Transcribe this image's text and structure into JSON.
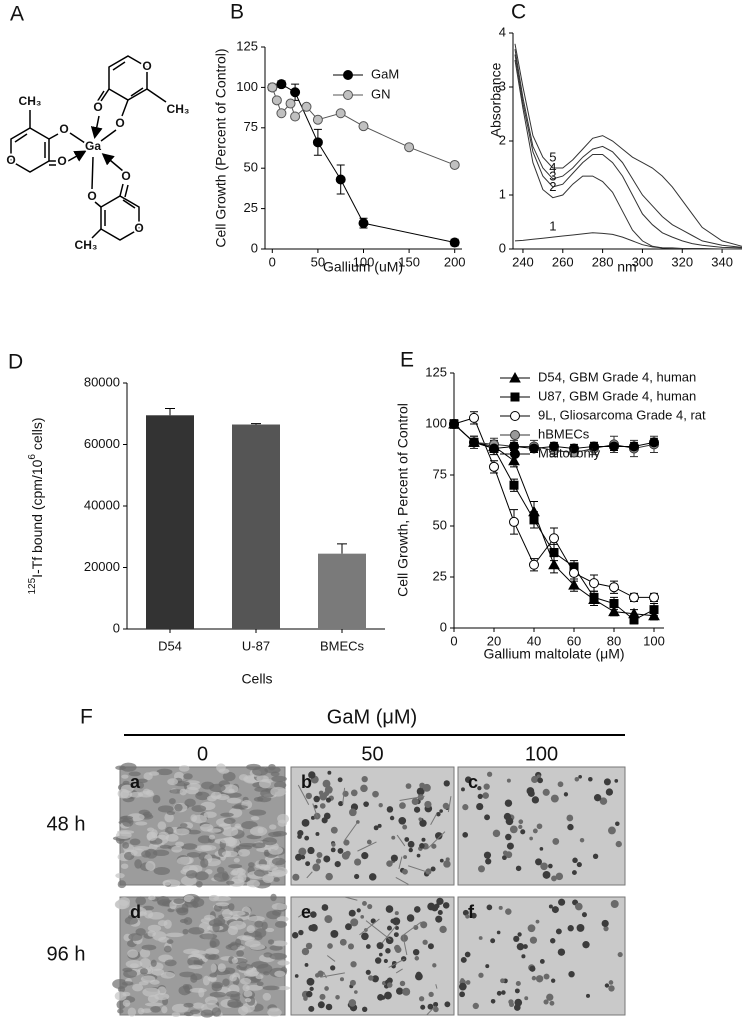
{
  "panel_labels": [
    "A",
    "B",
    "C",
    "D",
    "E",
    "F"
  ],
  "structure": {
    "atoms": [
      "CH₃",
      "O",
      "O",
      "O",
      "Ga",
      "O",
      "O",
      "O",
      "CH₃",
      "O",
      "O",
      "O",
      "CH₃"
    ]
  },
  "chart_data": [
    {
      "type": "line",
      "xlabel": "Gallium (uM)",
      "ylabel": "Cell Growth (Percent of Control)",
      "xlim": [
        -8,
        208
      ],
      "xticks": [
        0,
        50,
        100,
        150,
        200
      ],
      "ylim": [
        0,
        125
      ],
      "yticks": [
        0,
        25,
        50,
        75,
        100,
        125
      ],
      "legend": "upper right",
      "series": [
        {
          "name": "GaM",
          "color": "#000000",
          "marker": "circle",
          "marker_fill": "#000000",
          "x": [
            0,
            10,
            25,
            50,
            75,
            100,
            200
          ],
          "values": [
            100,
            102,
            97,
            66,
            43,
            16,
            4
          ],
          "errors": [
            2,
            2,
            5,
            8,
            9,
            3,
            2
          ]
        },
        {
          "name": "GN",
          "color": "#555555",
          "marker": "circle",
          "marker_fill": "#c0c0c0",
          "x": [
            0,
            5,
            10,
            20,
            25,
            37.5,
            50,
            75,
            100,
            150,
            200
          ],
          "values": [
            100,
            92,
            84,
            90,
            82,
            88,
            80,
            84,
            76,
            63,
            52
          ]
        }
      ]
    },
    {
      "type": "line",
      "xlabel": "nm",
      "ylabel": "Absorbance",
      "xlim": [
        235,
        350
      ],
      "xticks": [
        240,
        260,
        280,
        300,
        320,
        340
      ],
      "ylim": [
        0,
        4
      ],
      "yticks": [
        0,
        1,
        2,
        3,
        4
      ],
      "legend": "inline",
      "x": [
        236,
        240,
        245,
        250,
        255,
        260,
        265,
        270,
        275,
        280,
        285,
        290,
        295,
        300,
        305,
        310,
        315,
        320,
        325,
        330,
        340,
        350
      ],
      "series": [
        {
          "name": "1",
          "color": "#333333",
          "marker": "none",
          "values": [
            0.15,
            0.16,
            0.18,
            0.2,
            0.22,
            0.24,
            0.26,
            0.28,
            0.3,
            0.29,
            0.27,
            0.22,
            0.15,
            0.08,
            0.04,
            0.02,
            0.01,
            0.01,
            0,
            0,
            0,
            0
          ]
        },
        {
          "name": "2",
          "color": "#333333",
          "marker": "none",
          "values": [
            3.5,
            2.6,
            1.6,
            1.1,
            0.95,
            1.0,
            1.2,
            1.35,
            1.35,
            1.25,
            1.05,
            0.7,
            0.35,
            0.15,
            0.05,
            0.02,
            0.02,
            0.01,
            0.01,
            0.01,
            0,
            0
          ]
        },
        {
          "name": "3",
          "color": "#333333",
          "marker": "none",
          "values": [
            3.6,
            2.7,
            1.8,
            1.35,
            1.15,
            1.2,
            1.4,
            1.6,
            1.75,
            1.75,
            1.6,
            1.35,
            1.0,
            0.65,
            0.45,
            0.3,
            0.22,
            0.15,
            0.1,
            0.07,
            0.03,
            0.02
          ]
        },
        {
          "name": "4",
          "color": "#333333",
          "marker": "none",
          "values": [
            3.7,
            2.8,
            1.9,
            1.5,
            1.3,
            1.35,
            1.5,
            1.7,
            1.85,
            1.9,
            1.8,
            1.6,
            1.3,
            1.0,
            0.8,
            0.6,
            0.45,
            0.35,
            0.25,
            0.15,
            0.07,
            0.03
          ]
        },
        {
          "name": "5",
          "color": "#333333",
          "marker": "none",
          "values": [
            3.8,
            3.0,
            2.1,
            1.7,
            1.5,
            1.5,
            1.65,
            1.85,
            2.05,
            2.1,
            2.0,
            1.85,
            1.7,
            1.6,
            1.5,
            1.35,
            1.15,
            0.9,
            0.65,
            0.4,
            0.15,
            0.05
          ]
        }
      ]
    },
    {
      "type": "bar",
      "xlabel": "Cells",
      "ylabel": [
        "125",
        "I-Tf bound (cpm/10",
        "6",
        " cells)"
      ],
      "categories": [
        "D54",
        "U-87",
        "BMECs"
      ],
      "values": [
        69500,
        66500,
        24500
      ],
      "errors": [
        2200,
        300,
        3200
      ],
      "colors": [
        "#333333",
        "#555555",
        "#7a7a7a"
      ],
      "ylim": [
        0,
        80000
      ],
      "yticks": [
        0,
        20000,
        40000,
        60000,
        80000
      ]
    },
    {
      "type": "line",
      "xlabel": "Gallium maltolate (μM)",
      "ylabel": "Cell Growth, Percent of Control",
      "xlim": [
        0,
        105
      ],
      "xticks": [
        0,
        20,
        40,
        60,
        80,
        100
      ],
      "ylim": [
        0,
        125
      ],
      "yticks": [
        0,
        25,
        50,
        75,
        100,
        125
      ],
      "legend": "top",
      "x": [
        0,
        10,
        20,
        30,
        40,
        50,
        60,
        70,
        80,
        90,
        100
      ],
      "series": [
        {
          "name": "D54, GBM Grade 4, human",
          "color": "#000000",
          "marker": "triangle",
          "marker_fill": "#000000",
          "values": [
            100,
            91,
            89,
            82,
            57,
            31,
            21,
            14,
            8,
            7,
            6
          ],
          "errors": [
            2,
            3,
            3,
            3,
            5,
            4,
            3,
            3,
            2,
            2,
            2
          ]
        },
        {
          "name": "U87, GBM Grade 4, human",
          "color": "#000000",
          "marker": "square",
          "marker_fill": "#000000",
          "values": [
            100,
            91,
            88,
            70,
            53,
            37,
            30,
            15,
            12,
            4,
            9
          ],
          "errors": [
            2,
            3,
            3,
            3,
            4,
            4,
            3,
            3,
            3,
            2,
            3
          ]
        },
        {
          "name": "9L, Gliosarcoma Grade 4, rat",
          "color": "#000000",
          "marker": "circle",
          "marker_fill": "#ffffff",
          "values": [
            100,
            103,
            79,
            52,
            31,
            44,
            27,
            22,
            20,
            15,
            15
          ],
          "errors": [
            2,
            3,
            3,
            6,
            3,
            5,
            4,
            4,
            3,
            2,
            2
          ]
        },
        {
          "name": "hBMECs",
          "color": "#333333",
          "marker": "circle",
          "marker_fill": "#999999",
          "values": [
            100,
            91,
            90,
            89,
            89,
            87,
            86,
            88,
            90,
            88,
            90
          ],
          "errors": [
            2,
            3,
            3,
            3,
            3,
            3,
            2,
            3,
            4,
            4,
            4
          ]
        },
        {
          "name": "Maltol only",
          "color": "#000000",
          "marker": "circle",
          "marker_fill": "#000000",
          "values": [
            100,
            91,
            88,
            89,
            88,
            89,
            88,
            89,
            89,
            89,
            91
          ],
          "errors": [
            2,
            2,
            2,
            2,
            2,
            2,
            2,
            2,
            2,
            2,
            2
          ]
        }
      ]
    }
  ],
  "micrographs": {
    "header": "GaM (μM)",
    "columns": [
      "0",
      "50",
      "100"
    ],
    "rows": [
      "48 h",
      "96 h"
    ],
    "tiles": [
      "a",
      "b",
      "c",
      "d",
      "e",
      "f"
    ]
  }
}
